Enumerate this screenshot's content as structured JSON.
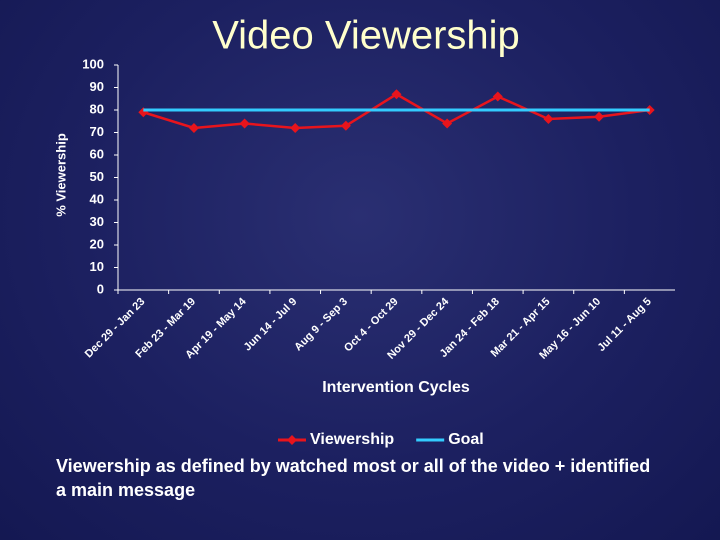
{
  "chart_data": {
    "type": "line",
    "title": "Video Viewership",
    "xlabel": "Intervention Cycles",
    "ylabel": "% Viewership",
    "categories": [
      "Dec 29 - Jan 23",
      "Feb 23 - Mar 19",
      "Apr 19 - May 14",
      "Jun 14 - Jul 9",
      "Aug 9 - Sep 3",
      "Oct 4 - Oct 29",
      "Nov 29 - Dec 24",
      "Jan 24 - Feb 18",
      "Mar 21 - Apr 15",
      "May 16 - Jun 10",
      "Jul 11 - Aug 5"
    ],
    "series": [
      {
        "name": "Viewership",
        "color": "#e8141c",
        "marker": "diamond",
        "values": [
          79,
          72,
          74,
          72,
          73,
          87,
          74,
          86,
          76,
          77,
          80
        ]
      },
      {
        "name": "Goal",
        "color": "#33ccff",
        "values": [
          80,
          80,
          80,
          80,
          80,
          80,
          80,
          80,
          80,
          80,
          80
        ]
      }
    ],
    "ylim": [
      0,
      100
    ],
    "yticks": [
      0,
      10,
      20,
      30,
      40,
      50,
      60,
      70,
      80,
      90,
      100
    ],
    "grid": false,
    "legend": "bottom"
  },
  "footnote": "Viewership as defined by watched most or all of the video + identified a main message"
}
